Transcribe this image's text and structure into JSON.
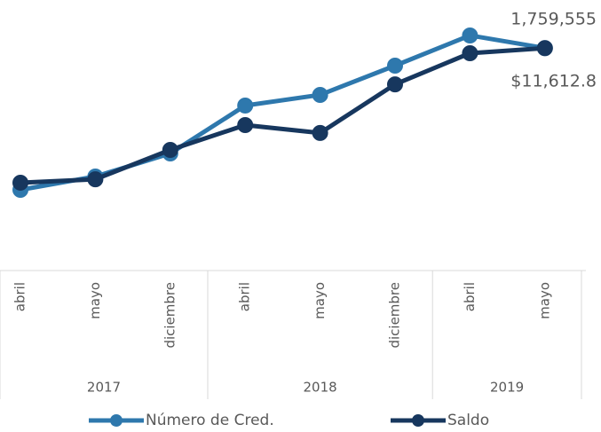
{
  "chart_data": {
    "type": "line",
    "groups": [
      {
        "name": "2017",
        "categories": [
          "abril",
          "mayo",
          "diciembre"
        ]
      },
      {
        "name": "2018",
        "categories": [
          "abril",
          "mayo",
          "diciembre"
        ]
      },
      {
        "name": "2019",
        "categories": [
          "abril",
          "mayo"
        ]
      }
    ],
    "series": [
      {
        "name": "Número de Cred.",
        "color": "#2e78ad",
        "values": [
          567000,
          679000,
          873000,
          1276000,
          1366000,
          1612000,
          1866000,
          1759555
        ],
        "value_labels": [
          null,
          null,
          null,
          null,
          null,
          null,
          null,
          "1,759,555"
        ]
      },
      {
        "name": "Saldo",
        "color": "#17375e",
        "axis": "y2",
        "values": [
          4140,
          4330,
          5960,
          7340,
          6900,
          9600,
          11330,
          11612.8
        ],
        "value_labels": [
          null,
          null,
          null,
          null,
          null,
          null,
          null,
          "$11,612.8"
        ]
      }
    ],
    "ylim": [
      0,
      2000000
    ],
    "y2lim": [
      0,
      13200
    ]
  }
}
